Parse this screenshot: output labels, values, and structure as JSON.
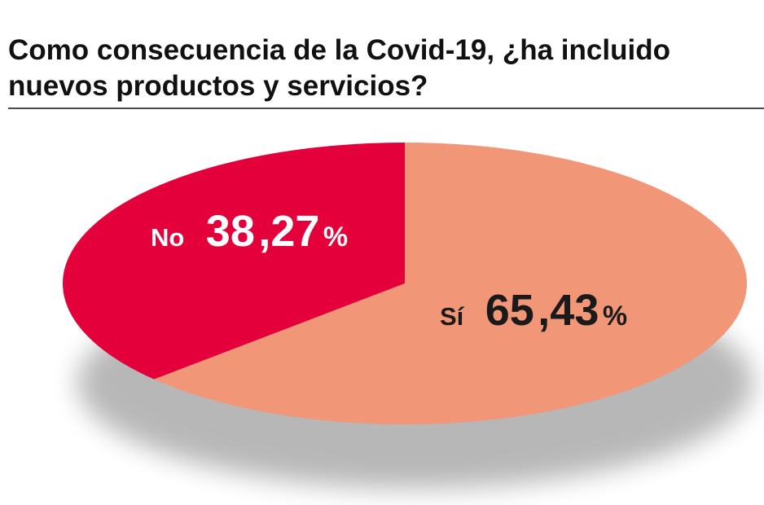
{
  "title": {
    "line1": "Como consecuencia de la Covid-19, ¿ha incluido",
    "line2": "nuevos productos y servicios?"
  },
  "colors": {
    "no": "#e4003a",
    "si": "#f29678",
    "label_light": "#ffffff",
    "label_dark": "#1a1a1a"
  },
  "chart_data": {
    "type": "pie",
    "title": "Como consecuencia de la Covid-19, ¿ha incluido nuevos productos y servicios?",
    "slices": [
      {
        "label": "No",
        "value": 38.27,
        "display_int": "38",
        "display_dec": ",27",
        "display_pct": "%"
      },
      {
        "label": "Sí",
        "value": 65.43,
        "display_int": "65",
        "display_dec": ",43",
        "display_pct": "%"
      }
    ]
  }
}
